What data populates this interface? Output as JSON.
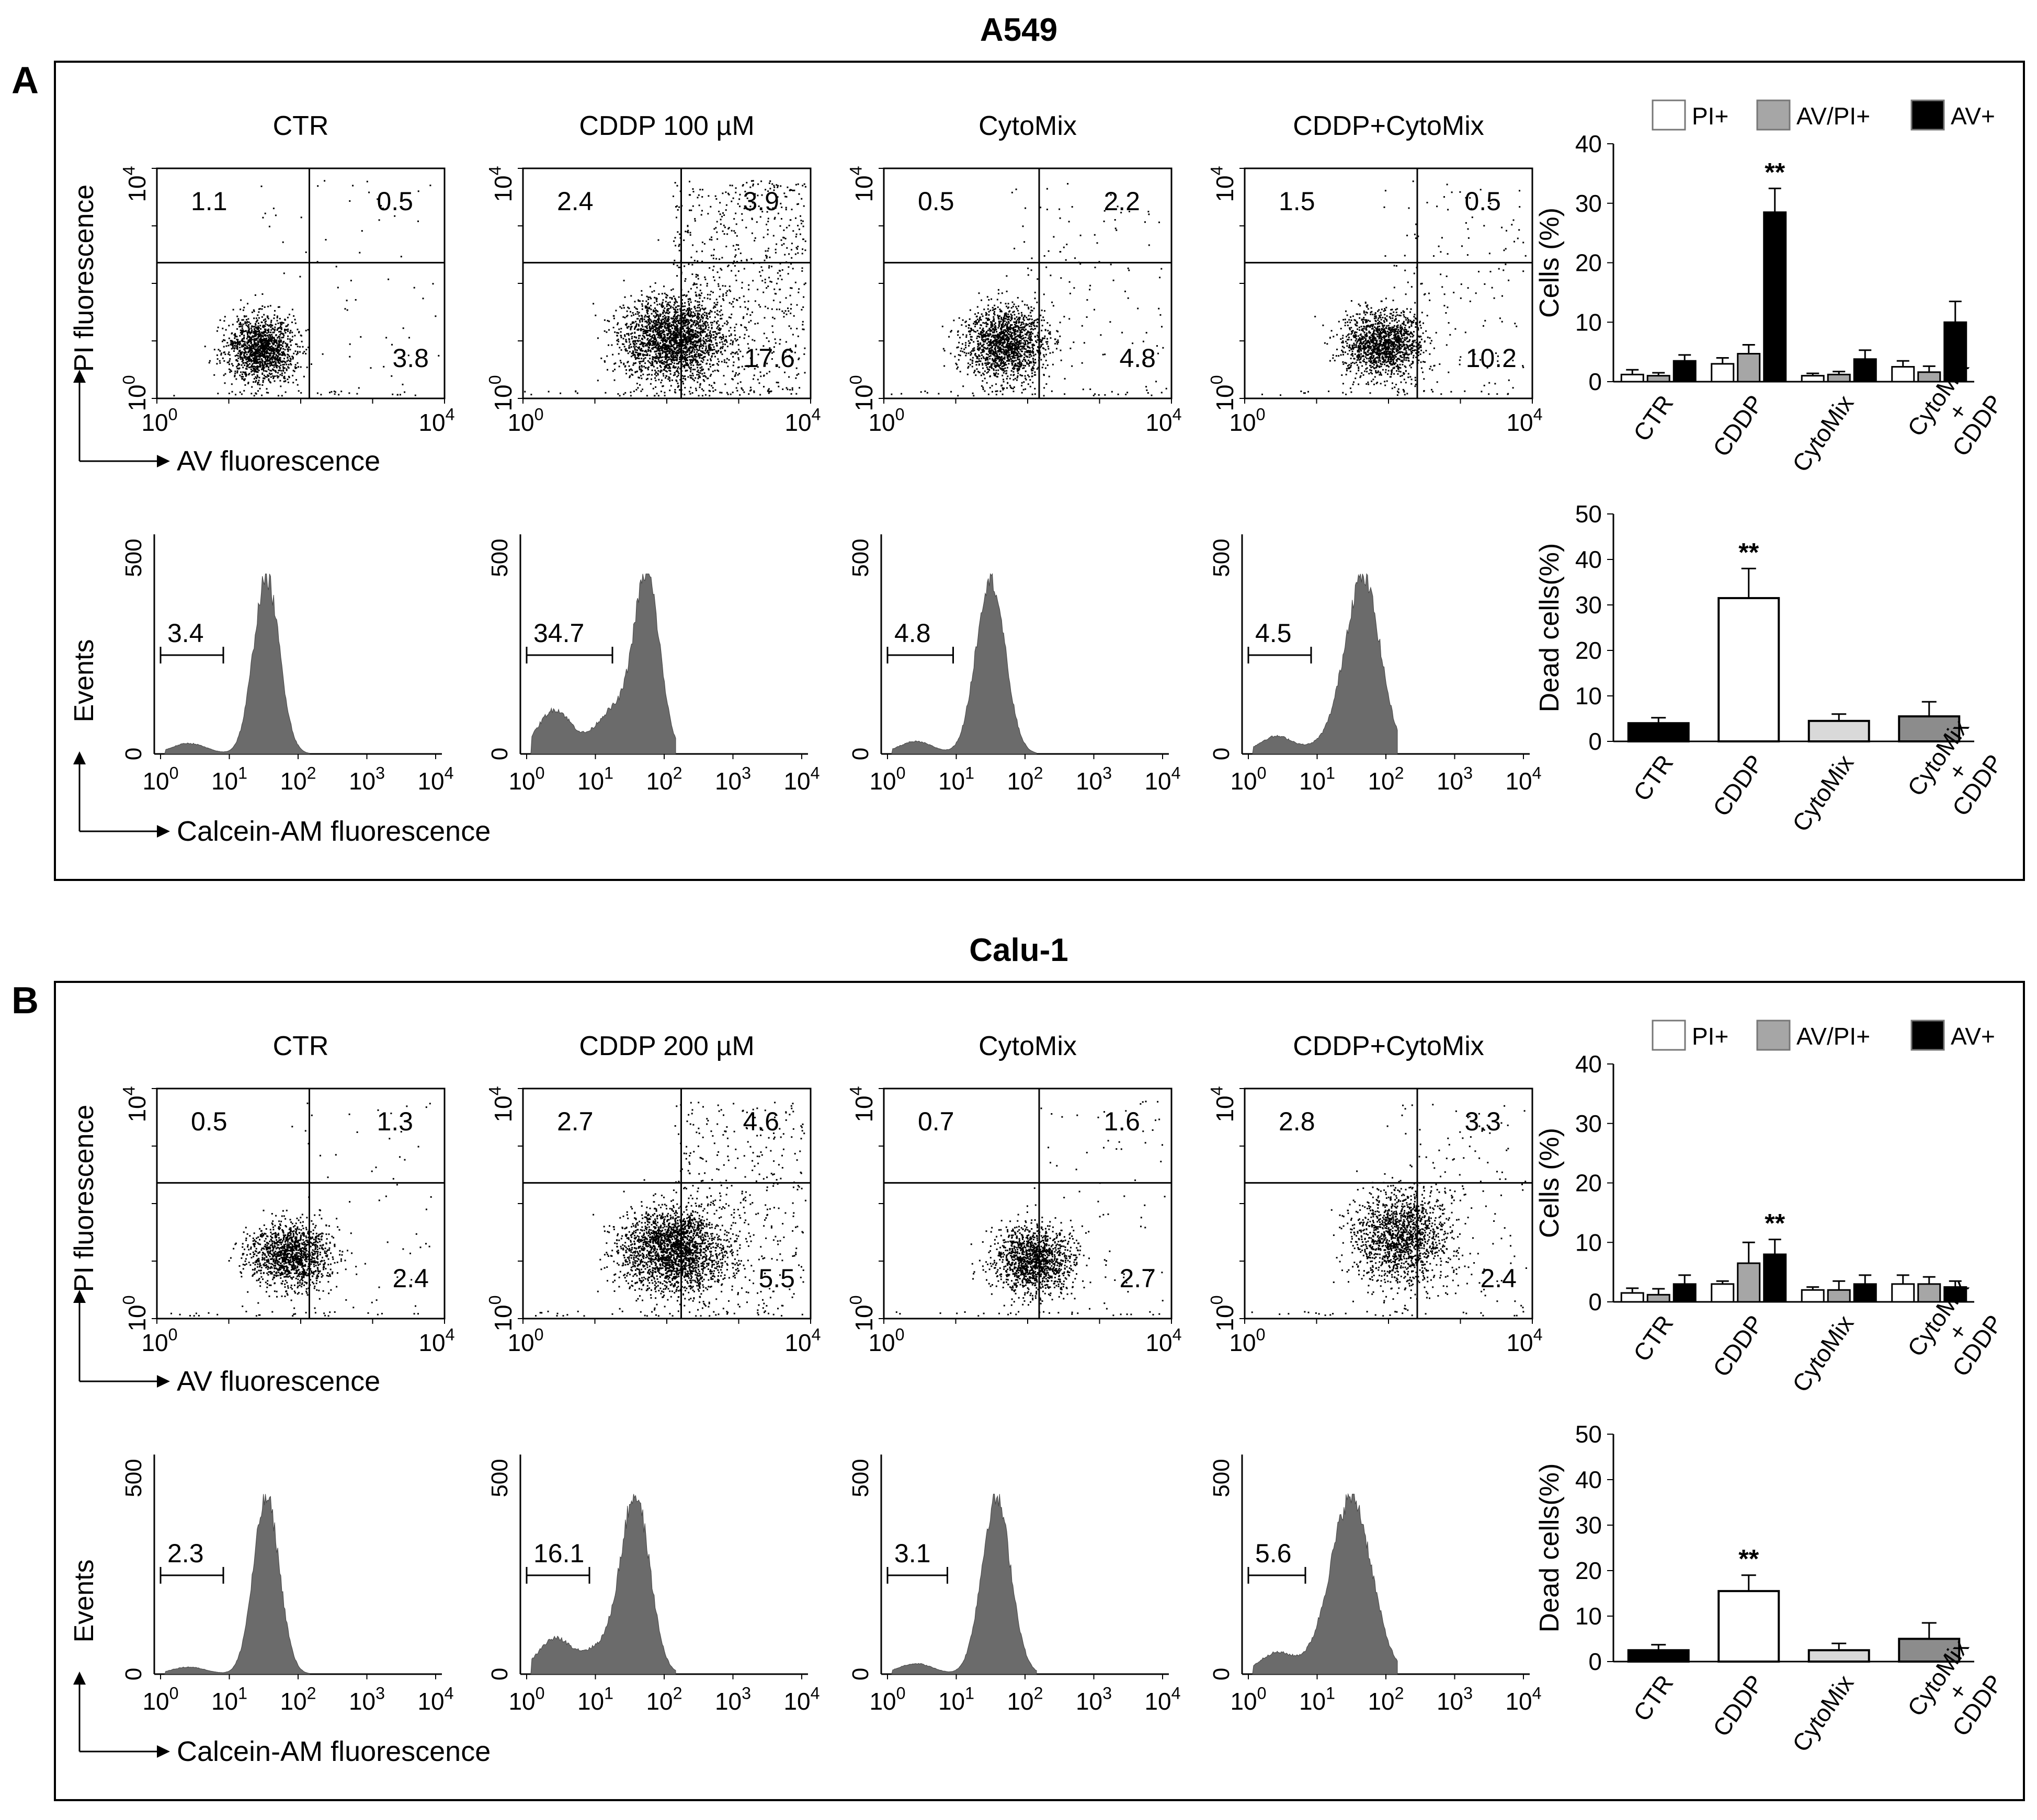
{
  "panels": [
    {
      "letter": "A",
      "cell_line": "A549",
      "conditions": [
        "CTR",
        "CDDP 100 µM",
        "CytoMix",
        "CDDP+CytoMix"
      ],
      "scatter_ylabel": "PI  fluorescence",
      "scatter_xlabel": "AV fluorescence",
      "hist_ylabel": "Events",
      "hist_xlabel": "Calcein-AM fluorescence",
      "quadrants": [
        {
          "ul": "1.1",
          "ur": "0.5",
          "lr": "3.8"
        },
        {
          "ul": "2.4",
          "ur": "3.9",
          "lr": "17.6"
        },
        {
          "ul": "0.5",
          "ur": "2.2",
          "lr": "4.8"
        },
        {
          "ul": "1.5",
          "ur": "0.5",
          "lr": "10.2"
        }
      ],
      "gates": [
        "3.4",
        "34.7",
        "4.8",
        "4.5"
      ]
    },
    {
      "letter": "B",
      "cell_line": "Calu-1",
      "conditions": [
        "CTR",
        "CDDP 200 µM",
        "CytoMix",
        "CDDP+CytoMix"
      ],
      "scatter_ylabel": "PI fluorescence",
      "scatter_xlabel": "AV fluorescence",
      "hist_ylabel": "Events",
      "hist_xlabel": "Calcein-AM fluorescence",
      "quadrants": [
        {
          "ul": "0.5",
          "ur": "1.3",
          "lr": "2.4"
        },
        {
          "ul": "2.7",
          "ur": "4.6",
          "lr": "5.5"
        },
        {
          "ul": "0.7",
          "ur": "1.6",
          "lr": "2.7"
        },
        {
          "ul": "2.8",
          "ur": "3.3",
          "lr": "2.4"
        }
      ],
      "gates": [
        "2.3",
        "16.1",
        "3.1",
        "5.6"
      ]
    }
  ],
  "axis_ticks": {
    "scatter": {
      "min": "10",
      "min_exp": "0",
      "max": "10",
      "max_exp": "4"
    },
    "hist_x": [
      {
        "base": "10",
        "exp": "0"
      },
      {
        "base": "10",
        "exp": "1"
      },
      {
        "base": "10",
        "exp": "2"
      },
      {
        "base": "10",
        "exp": "3"
      },
      {
        "base": "10",
        "exp": "4"
      }
    ],
    "hist_y": [
      "0",
      "500"
    ]
  },
  "colors": {
    "pi": "#ffffff",
    "avpi": "#a6a6a6",
    "av": "#000000",
    "hist_fill": "#6b6b6b"
  },
  "chart_data": [
    {
      "type": "bar",
      "panel": "A",
      "ylabel": "Cells (%)",
      "ylim": [
        0,
        40
      ],
      "yticks": [
        0,
        10,
        20,
        30,
        40
      ],
      "categories": [
        "CTR",
        "CDDP",
        "CytoMix",
        "CytoMix\n+\nCDDP"
      ],
      "legend": [
        "PI+",
        "AV/PI+",
        "AV+"
      ],
      "series": [
        {
          "name": "PI+",
          "values": [
            1.2,
            3.0,
            1.0,
            2.5
          ],
          "errors": [
            0.8,
            1.0,
            0.4,
            1.0
          ]
        },
        {
          "name": "AV/PI+",
          "values": [
            1.0,
            4.7,
            1.2,
            1.6
          ],
          "errors": [
            0.5,
            1.5,
            0.5,
            1.0
          ]
        },
        {
          "name": "AV+",
          "values": [
            3.5,
            28.5,
            3.8,
            10.0
          ],
          "errors": [
            1.0,
            4.0,
            1.5,
            3.5
          ]
        }
      ],
      "significance": [
        {
          "category": 1,
          "series": 2,
          "label": "**"
        }
      ]
    },
    {
      "type": "bar",
      "panel": "A",
      "ylabel": "Dead cells(%)",
      "ylim": [
        0,
        50
      ],
      "yticks": [
        0,
        10,
        20,
        30,
        40,
        50
      ],
      "categories": [
        "CTR",
        "CDDP",
        "CytoMix",
        "CytoMix\n+\nCDDP"
      ],
      "values": [
        4.0,
        31.5,
        4.5,
        5.5
      ],
      "errors": [
        1.2,
        6.5,
        1.5,
        3.2
      ],
      "bar_colors": [
        "#000000",
        "#ffffff",
        "#d9d9d9",
        "#8c8c8c"
      ],
      "significance": [
        {
          "category": 1,
          "label": "**"
        }
      ]
    },
    {
      "type": "bar",
      "panel": "B",
      "ylabel": "Cells (%)",
      "ylim": [
        0,
        40
      ],
      "yticks": [
        0,
        10,
        20,
        30,
        40
      ],
      "categories": [
        "CTR",
        "CDDP",
        "CytoMix",
        "CytoMix\n+\nCDDP"
      ],
      "legend": [
        "PI+",
        "AV/PI+",
        "AV+"
      ],
      "series": [
        {
          "name": "PI+",
          "values": [
            1.5,
            3.0,
            2.0,
            3.0
          ],
          "errors": [
            0.8,
            0.5,
            0.5,
            1.5
          ]
        },
        {
          "name": "AV/PI+",
          "values": [
            1.2,
            6.5,
            2.0,
            3.0
          ],
          "errors": [
            1.0,
            3.5,
            1.5,
            1.2
          ]
        },
        {
          "name": "AV+",
          "values": [
            3.0,
            8.0,
            3.0,
            2.5
          ],
          "errors": [
            1.5,
            2.5,
            1.5,
            1.0
          ]
        }
      ],
      "significance": [
        {
          "category": 1,
          "series": 2,
          "label": "**"
        }
      ]
    },
    {
      "type": "bar",
      "panel": "B",
      "ylabel": "Dead cells(%)",
      "ylim": [
        0,
        50
      ],
      "yticks": [
        0,
        10,
        20,
        30,
        40,
        50
      ],
      "categories": [
        "CTR",
        "CDDP",
        "CytoMix",
        "CytoMix\n+\nCDDP"
      ],
      "values": [
        2.5,
        15.5,
        2.5,
        5.0
      ],
      "errors": [
        1.2,
        3.5,
        1.5,
        3.5
      ],
      "bar_colors": [
        "#000000",
        "#ffffff",
        "#d9d9d9",
        "#8c8c8c"
      ],
      "significance": [
        {
          "category": 1,
          "label": "**"
        }
      ]
    }
  ]
}
